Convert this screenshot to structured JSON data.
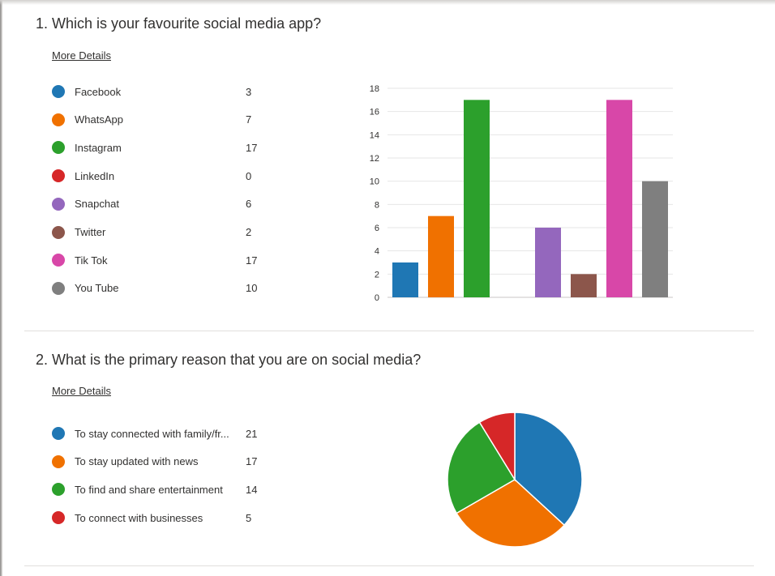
{
  "question1": {
    "title": "1. Which is your favourite social media app?",
    "more_details": "More Details",
    "items": [
      {
        "label": "Facebook",
        "count": "3",
        "color": "#1f77b4"
      },
      {
        "label": "WhatsApp",
        "count": "7",
        "color": "#f07100"
      },
      {
        "label": "Instagram",
        "count": "17",
        "color": "#2ca02c"
      },
      {
        "label": "LinkedIn",
        "count": "0",
        "color": "#d62728"
      },
      {
        "label": "Snapchat",
        "count": "6",
        "color": "#9467bd"
      },
      {
        "label": "Twitter",
        "count": "2",
        "color": "#8c564b"
      },
      {
        "label": "Tik Tok",
        "count": "17",
        "color": "#d847a8"
      },
      {
        "label": "You Tube",
        "count": "10",
        "color": "#7f7f7f"
      }
    ]
  },
  "question2": {
    "title": "2. What is the primary reason that you are on social media?",
    "more_details": "More Details",
    "items": [
      {
        "label": "To stay connected with family/fr...",
        "count": "21",
        "color": "#1f77b4"
      },
      {
        "label": "To stay updated with news",
        "count": "17",
        "color": "#f07100"
      },
      {
        "label": "To find and share entertainment",
        "count": "14",
        "color": "#2ca02c"
      },
      {
        "label": "To connect with businesses",
        "count": "5",
        "color": "#d62728"
      }
    ]
  },
  "chart_data": [
    {
      "type": "bar",
      "categories": [
        "Facebook",
        "WhatsApp",
        "Instagram",
        "LinkedIn",
        "Snapchat",
        "Twitter",
        "Tik Tok",
        "You Tube"
      ],
      "values": [
        3,
        7,
        17,
        0,
        6,
        2,
        17,
        10
      ],
      "colors": [
        "#1f77b4",
        "#f07100",
        "#2ca02c",
        "#d62728",
        "#9467bd",
        "#8c564b",
        "#d847a8",
        "#7f7f7f"
      ],
      "ylim": [
        0,
        18
      ],
      "yticks": [
        0,
        2,
        4,
        6,
        8,
        10,
        12,
        14,
        16,
        18
      ],
      "grid": true,
      "title": "",
      "xlabel": "",
      "ylabel": ""
    },
    {
      "type": "pie",
      "categories": [
        "To stay connected with family/fr...",
        "To stay updated with news",
        "To find and share entertainment",
        "To connect with businesses"
      ],
      "values": [
        21,
        17,
        14,
        5
      ],
      "colors": [
        "#1f77b4",
        "#f07100",
        "#2ca02c",
        "#d62728"
      ],
      "title": ""
    }
  ]
}
